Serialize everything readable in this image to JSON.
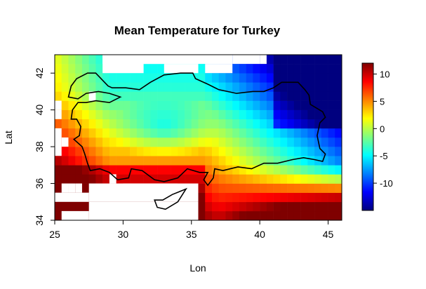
{
  "chart_data": {
    "type": "heatmap",
    "title": "Mean Temperature for Turkey",
    "xlabel": "Lon",
    "ylabel": "Lat",
    "xlim": [
      25,
      46
    ],
    "ylim": [
      34,
      43
    ],
    "x_ticks": [
      25,
      30,
      35,
      40,
      45
    ],
    "y_ticks": [
      34,
      36,
      38,
      40,
      42
    ],
    "x_tick_labels": [
      "25",
      "30",
      "35",
      "40",
      "45"
    ],
    "y_tick_labels": [
      "34",
      "36",
      "38",
      "40",
      "42"
    ],
    "cell_size_deg": 0.5,
    "grid": false,
    "colorbar": {
      "position": "right",
      "range": [
        -15,
        12
      ],
      "ticks": [
        -10,
        -5,
        0,
        5,
        10
      ],
      "tick_labels": [
        "-10",
        "-5",
        "0",
        "5",
        "10"
      ],
      "colors": [
        "#00007f",
        "#0000ff",
        "#0080ff",
        "#00ffff",
        "#80ff80",
        "#ffff00",
        "#ff8000",
        "#ff0000",
        "#7f0000"
      ]
    },
    "missing_cells": [
      {
        "lon": 25,
        "lat": 40,
        "w": 0.5,
        "h": 0.5
      },
      {
        "lon": 25,
        "lat": 39.5,
        "w": 0.5,
        "h": 0.5
      },
      {
        "lon": 25,
        "lat": 38.5,
        "w": 0.5,
        "h": 0.5
      },
      {
        "lon": 25.5,
        "lat": 38,
        "w": 0.5,
        "h": 0.5
      },
      {
        "lon": 25,
        "lat": 37.5,
        "w": 0.5,
        "h": 1.0
      },
      {
        "lon": 27.5,
        "lat": 40.5,
        "w": 0.5,
        "h": 0.5
      },
      {
        "lon": 28.5,
        "lat": 42,
        "w": 3.0,
        "h": 1.0
      },
      {
        "lon": 31.5,
        "lat": 42.5,
        "w": 1.5,
        "h": 0.5
      },
      {
        "lon": 28.5,
        "lat": 42.5,
        "w": 9.5,
        "h": 0.5
      },
      {
        "lon": 33,
        "lat": 42,
        "w": 2.5,
        "h": 0.5
      },
      {
        "lon": 36,
        "lat": 42,
        "w": 2,
        "h": 0.5
      },
      {
        "lon": 38,
        "lat": 42.5,
        "w": 2,
        "h": 0.5
      },
      {
        "lon": 40,
        "lat": 42.5,
        "w": 0.5,
        "h": 0.5
      },
      {
        "lon": 25.5,
        "lat": 35.5,
        "w": 0.5,
        "h": 0.5
      },
      {
        "lon": 26.5,
        "lat": 35.5,
        "w": 0.5,
        "h": 0.5
      },
      {
        "lon": 25,
        "lat": 35,
        "w": 2.5,
        "h": 0.5
      },
      {
        "lon": 26,
        "lat": 35.5,
        "w": 0.5,
        "h": 0.5
      },
      {
        "lon": 27.5,
        "lat": 35,
        "w": 8.0,
        "h": 1.0
      },
      {
        "lon": 27.5,
        "lat": 34,
        "w": 8.0,
        "h": 1.0
      },
      {
        "lon": 25.5,
        "lat": 34,
        "w": 2.0,
        "h": 0.5
      },
      {
        "lon": 30,
        "lat": 35.5,
        "w": 4.0,
        "h": 0.5
      },
      {
        "lon": 29,
        "lat": 36,
        "w": 0.5,
        "h": 0.5
      }
    ]
  }
}
